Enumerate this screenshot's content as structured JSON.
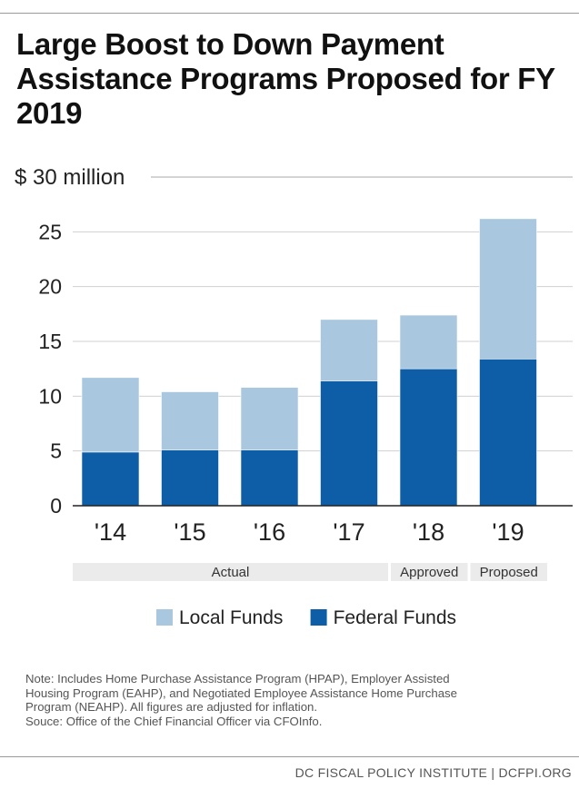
{
  "title": "Large Boost to Down Payment Assistance Programs Proposed for FY 2019",
  "chart_data": {
    "type": "bar",
    "stacked": true,
    "title": "Large Boost to Down Payment Assistance Programs Proposed for FY 2019",
    "ylabel": "",
    "unit_label": "$ 30 million",
    "ylim": [
      0,
      30
    ],
    "yticks": [
      0,
      5,
      10,
      15,
      20,
      25
    ],
    "ytick_labels": [
      "0",
      "5",
      "10",
      "15",
      "20",
      "25"
    ],
    "categories": [
      "'14",
      "'15",
      "'16",
      "'17",
      "'18",
      "'19"
    ],
    "series": [
      {
        "name": "Federal Funds",
        "color": "#0d5ea6",
        "values": [
          4.9,
          5.1,
          5.1,
          11.4,
          12.5,
          13.4
        ]
      },
      {
        "name": "Local Funds",
        "color": "#a9c7df",
        "values": [
          6.8,
          5.3,
          5.7,
          5.6,
          4.9,
          12.8
        ]
      }
    ],
    "period_groups": [
      {
        "label": "Actual",
        "from": 0,
        "to": 3
      },
      {
        "label": "Approved",
        "from": 4,
        "to": 4
      },
      {
        "label": "Proposed",
        "from": 5,
        "to": 5
      }
    ],
    "legend_order": [
      "Local Funds",
      "Federal Funds"
    ],
    "legend_position": "bottom",
    "grid": true
  },
  "note": {
    "lines": [
      "Note: Includes Home Purchase Assistance Program (HPAP), Employer Assisted",
      "Housing Program (EAHP), and Negotiated Employee Assistance Home Purchase",
      "Program (NEAHP). All figures are adjusted for inflation.",
      "Souce: Office of the Chief Financial Officer via CFOInfo."
    ]
  },
  "footer": "DC FISCAL POLICY INSTITUTE | DCFPI.ORG"
}
